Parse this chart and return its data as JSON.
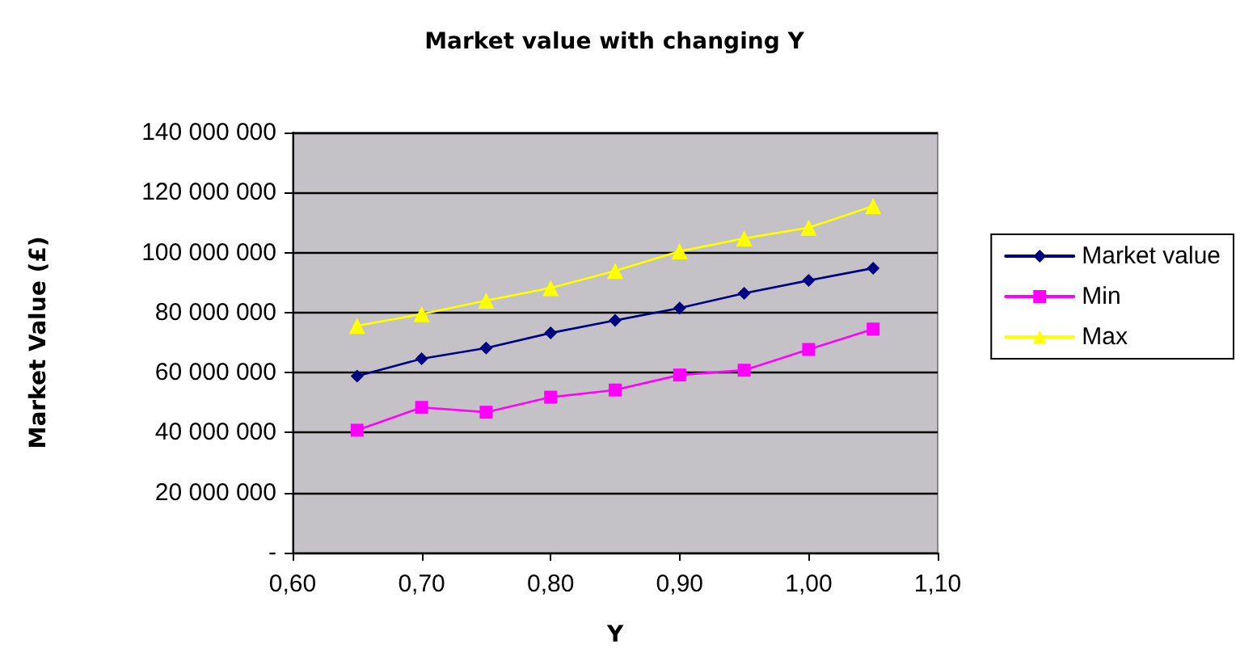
{
  "chart_data": {
    "type": "line",
    "title": "Market value with changing Y",
    "xlabel": "Y",
    "ylabel": "Market Value (£)",
    "x": [
      0.65,
      0.7,
      0.75,
      0.8,
      0.85,
      0.9,
      0.95,
      1.0,
      1.05
    ],
    "series": [
      {
        "name": "Market value",
        "color": "#000080",
        "marker": "diamond",
        "values": [
          58800000,
          64600000,
          68200000,
          73200000,
          77400000,
          81500000,
          86400000,
          90700000,
          94800000
        ]
      },
      {
        "name": "Min",
        "color": "#ff00ff",
        "marker": "square",
        "values": [
          40800000,
          48400000,
          46800000,
          51800000,
          54200000,
          59200000,
          60800000,
          67700000,
          74500000
        ]
      },
      {
        "name": "Max",
        "color": "#ffff00",
        "marker": "triangle",
        "values": [
          75600000,
          79500000,
          84000000,
          88200000,
          93900000,
          100400000,
          104700000,
          108300000,
          115500000
        ]
      }
    ],
    "xlim": [
      0.6,
      1.1
    ],
    "xticks": [
      {
        "value": 0.6,
        "label": "0,60"
      },
      {
        "value": 0.7,
        "label": "0,70"
      },
      {
        "value": 0.8,
        "label": "0,80"
      },
      {
        "value": 0.9,
        "label": "0,90"
      },
      {
        "value": 1.0,
        "label": "1,00"
      },
      {
        "value": 1.1,
        "label": "1,10"
      }
    ],
    "ylim": [
      0,
      140000000
    ],
    "yticks": [
      {
        "value": 0,
        "label": "-"
      },
      {
        "value": 20000000,
        "label": "20 000 000"
      },
      {
        "value": 40000000,
        "label": "40 000 000"
      },
      {
        "value": 60000000,
        "label": "60 000 000"
      },
      {
        "value": 80000000,
        "label": "80 000 000"
      },
      {
        "value": 100000000,
        "label": "100 000 000"
      },
      {
        "value": 120000000,
        "label": "120 000 000"
      },
      {
        "value": 140000000,
        "label": "140 000 000"
      }
    ],
    "grid": "y",
    "legend": "right",
    "line_style": "solid"
  }
}
